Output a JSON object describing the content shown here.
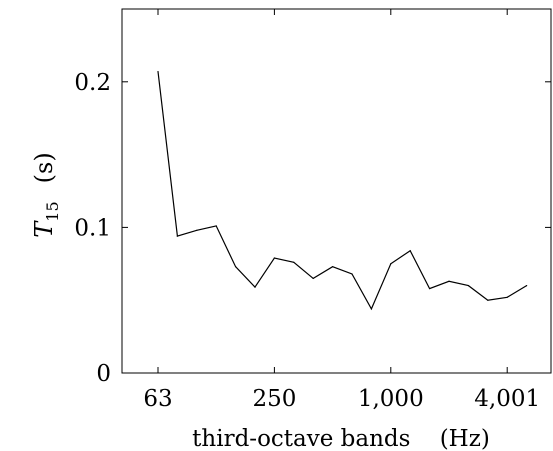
{
  "chart_data": {
    "type": "line",
    "title": "",
    "xlabel": "third-octave bands    (Hz)",
    "ylabel": "T15    (s)",
    "ylabel_main": "T",
    "ylabel_sub": "15",
    "ylabel_unit": "(s)",
    "x_scale": "log (third-octave bands)",
    "x_ticks": [
      "63",
      "250",
      "1,000",
      "4,001"
    ],
    "y_ticks": [
      "0",
      "0.1",
      "0.2"
    ],
    "ylim": [
      0,
      0.25
    ],
    "grid": false,
    "series": [
      {
        "x": [
          "63",
          "80",
          "100",
          "125",
          "160",
          "200",
          "250",
          "315",
          "400",
          "500",
          "630",
          "800",
          "1,000",
          "1,250",
          "1,600",
          "2,000",
          "2,500",
          "3,150",
          "4,001",
          "5,000"
        ],
        "values": [
          0.207,
          0.094,
          0.098,
          0.101,
          0.073,
          0.059,
          0.079,
          0.076,
          0.065,
          0.073,
          0.068,
          0.044,
          0.075,
          0.084,
          0.058,
          0.063,
          0.06,
          0.05,
          0.052,
          0.06
        ]
      }
    ]
  }
}
